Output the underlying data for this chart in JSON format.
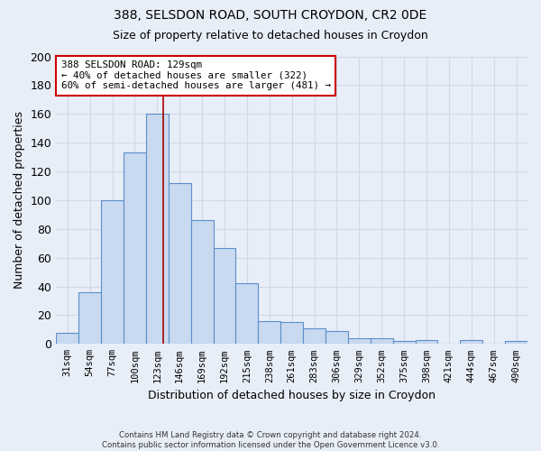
{
  "title1": "388, SELSDON ROAD, SOUTH CROYDON, CR2 0DE",
  "title2": "Size of property relative to detached houses in Croydon",
  "xlabel": "Distribution of detached houses by size in Croydon",
  "ylabel": "Number of detached properties",
  "footnote": "Contains HM Land Registry data © Crown copyright and database right 2024.\nContains public sector information licensed under the Open Government Licence v3.0.",
  "categories": [
    "31sqm",
    "54sqm",
    "77sqm",
    "100sqm",
    "123sqm",
    "146sqm",
    "169sqm",
    "192sqm",
    "215sqm",
    "238sqm",
    "261sqm",
    "283sqm",
    "306sqm",
    "329sqm",
    "352sqm",
    "375sqm",
    "398sqm",
    "421sqm",
    "444sqm",
    "467sqm",
    "490sqm"
  ],
  "values": [
    8,
    36,
    100,
    133,
    160,
    112,
    86,
    67,
    42,
    16,
    15,
    11,
    9,
    4,
    4,
    2,
    3,
    0,
    3,
    0,
    2
  ],
  "bar_color": "#c9d9f0",
  "bar_edge_color": "#5b8fca",
  "grid_color": "#d0d8e8",
  "background_color": "#e8eef8",
  "annotation_text": "388 SELSDON ROAD: 129sqm\n← 40% of detached houses are smaller (322)\n60% of semi-detached houses are larger (481) →",
  "annotation_box_color": "#ffffff",
  "annotation_box_edge_color": "#cc0000",
  "ylim": [
    0,
    200
  ],
  "yticks": [
    0,
    20,
    40,
    60,
    80,
    100,
    120,
    140,
    160,
    180,
    200
  ]
}
